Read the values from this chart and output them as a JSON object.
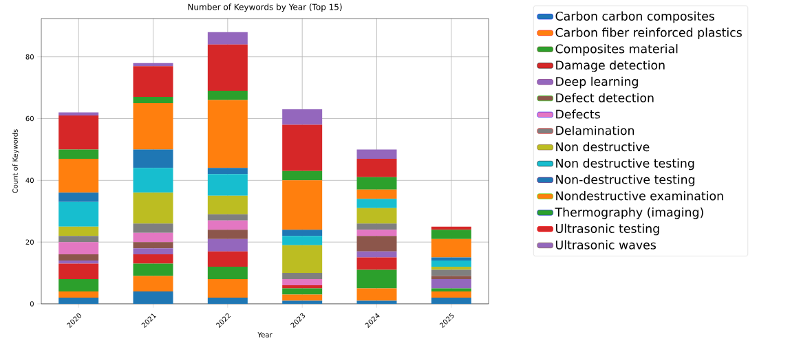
{
  "chart_data": {
    "type": "bar",
    "stacked": true,
    "title": "Number of Keywords by Year (Top 15)",
    "xlabel": "Year",
    "ylabel": "Count of Keywords",
    "categories": [
      "2020",
      "2021",
      "2022",
      "2023",
      "2024",
      "2025"
    ],
    "ylim": [
      0,
      92.4
    ],
    "yticks": [
      0,
      20,
      40,
      60,
      80
    ],
    "grid": true,
    "legend": "right",
    "series": [
      {
        "name": "Carbon carbon composites",
        "color": "#1f77b4",
        "values": [
          2,
          4,
          2,
          1,
          1,
          2
        ]
      },
      {
        "name": "Carbon fiber reinforced plastics",
        "color": "#ff7f0e",
        "values": [
          2,
          5,
          6,
          2,
          4,
          2
        ]
      },
      {
        "name": "Composites material",
        "color": "#2ca02c",
        "values": [
          4,
          4,
          4,
          2,
          6,
          1
        ]
      },
      {
        "name": "Damage detection",
        "color": "#d62728",
        "values": [
          5,
          3,
          5,
          1,
          4,
          0
        ]
      },
      {
        "name": "Deep learning",
        "color": "#9467bd",
        "values": [
          1,
          2,
          4,
          0,
          2,
          3
        ]
      },
      {
        "name": "Defect detection",
        "color": "#8c564b",
        "values": [
          2,
          2,
          3,
          0,
          5,
          1
        ]
      },
      {
        "name": "Defects",
        "color": "#e377c2",
        "values": [
          4,
          3,
          3,
          2,
          2,
          0
        ]
      },
      {
        "name": "Delamination",
        "color": "#7f7f7f",
        "values": [
          2,
          3,
          2,
          2,
          2,
          2
        ]
      },
      {
        "name": "Non destructive",
        "color": "#bcbd22",
        "values": [
          3,
          10,
          6,
          9,
          5,
          1
        ]
      },
      {
        "name": "Non destructive testing",
        "color": "#17becf",
        "values": [
          8,
          8,
          7,
          3,
          3,
          2
        ]
      },
      {
        "name": "Non-destructive testing",
        "color": "#1f77b4",
        "values": [
          3,
          6,
          2,
          2,
          0,
          1
        ]
      },
      {
        "name": "Nondestructive examination",
        "color": "#ff7f0e",
        "values": [
          11,
          15,
          22,
          16,
          3,
          6
        ]
      },
      {
        "name": "Thermography (imaging)",
        "color": "#2ca02c",
        "values": [
          3,
          2,
          3,
          3,
          4,
          3
        ]
      },
      {
        "name": "Ultrasonic testing",
        "color": "#d62728",
        "values": [
          11,
          10,
          15,
          15,
          6,
          1
        ]
      },
      {
        "name": "Ultrasonic waves",
        "color": "#9467bd",
        "values": [
          1,
          1,
          4,
          5,
          3,
          0
        ]
      }
    ]
  }
}
